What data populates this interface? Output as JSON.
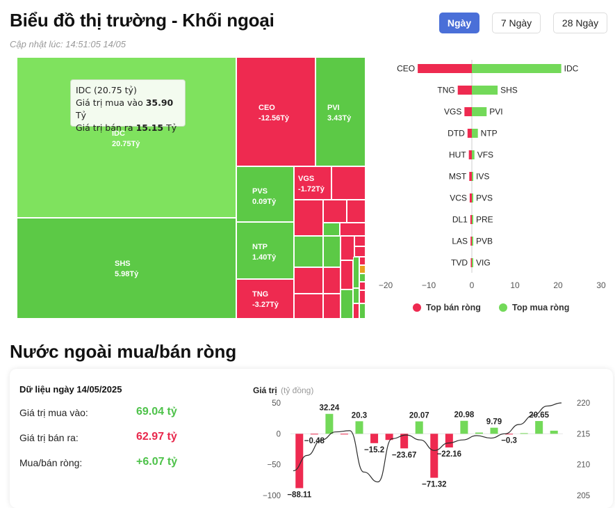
{
  "header": {
    "title": "Biểu đồ thị trường - Khối ngoại",
    "updated": "Cập nhật lúc: 14:51:05 14/05",
    "tabs": [
      {
        "label": "Ngày",
        "active": true
      },
      {
        "label": "7 Ngày",
        "active": false
      },
      {
        "label": "28 Ngày",
        "active": false
      }
    ]
  },
  "colors": {
    "buy": "#73d959",
    "buy_dark": "#5cc946",
    "sell": "#ee2a50",
    "accent": "#4a6fd8"
  },
  "treemap": {
    "tiles": [
      {
        "code": "IDC",
        "value": "20.75Tỷ",
        "side": "buy"
      },
      {
        "code": "SHS",
        "value": "5.98Tỷ",
        "side": "buy"
      },
      {
        "code": "CEO",
        "value": "-12.56Tỷ",
        "side": "sell"
      },
      {
        "code": "PVI",
        "value": "3.43Tỷ",
        "side": "buy"
      },
      {
        "code": "PVS",
        "value": "0.09Tỷ",
        "side": "buy"
      },
      {
        "code": "VGS",
        "value": "-1.72Tỷ",
        "side": "sell"
      },
      {
        "code": "NTP",
        "value": "1.40Tỷ",
        "side": "buy"
      },
      {
        "code": "TNG",
        "value": "-3.27Tỷ",
        "side": "sell"
      }
    ],
    "tooltip": {
      "title": "IDC (20.75 tỷ)",
      "buy_label": "Giá trị mua vào",
      "buy_value": "35.90",
      "sell_label": "Giá trị bán ra",
      "sell_value": "15.15",
      "unit": "Tỷ"
    }
  },
  "chart_data": [
    {
      "type": "bar",
      "orientation": "horizontal",
      "sell_codes": [
        "CEO",
        "TNG",
        "VGS",
        "DTD",
        "HUT",
        "MST",
        "VCS",
        "DL1",
        "LAS",
        "TVD"
      ],
      "sell_values": [
        -12.56,
        -3.27,
        -1.72,
        -1.0,
        -0.7,
        -0.6,
        -0.5,
        -0.35,
        -0.3,
        -0.25
      ],
      "buy_codes": [
        "IDC",
        "SHS",
        "PVI",
        "NTP",
        "VFS",
        "IVS",
        "PVS",
        "PRE",
        "PVB",
        "VIG"
      ],
      "buy_values": [
        20.75,
        5.98,
        3.43,
        1.4,
        0.6,
        0.3,
        0.09,
        0.08,
        0.06,
        0.05
      ],
      "xticks": [
        "−20",
        "−10",
        "0",
        "10",
        "20",
        "30"
      ],
      "xlim": [
        -20,
        30
      ],
      "legend": [
        {
          "name": "Top bán ròng",
          "color": "#ee2a50"
        },
        {
          "name": "Top mua ròng",
          "color": "#73d959"
        }
      ],
      "legend_position": "bottom"
    },
    {
      "type": "bar",
      "ylabel": "Giá trị",
      "ylabel_unit": "(tỷ đồng)",
      "values": [
        -88.11,
        -0.48,
        32.24,
        -1,
        20.3,
        -15.2,
        -10,
        -23.67,
        20.07,
        -71.32,
        -22.16,
        20.98,
        2,
        9.79,
        -0.3,
        1,
        20.65,
        5
      ],
      "data_labels": [
        {
          "i": 0,
          "text": "−88.11"
        },
        {
          "i": 1,
          "text": "−0.48"
        },
        {
          "i": 2,
          "text": "32.24"
        },
        {
          "i": 4,
          "text": "20.3"
        },
        {
          "i": 5,
          "text": "−15.2"
        },
        {
          "i": 7,
          "text": "−23.67"
        },
        {
          "i": 8,
          "text": "20.07"
        },
        {
          "i": 9,
          "text": "−71.32"
        },
        {
          "i": 10,
          "text": "−22.16"
        },
        {
          "i": 11,
          "text": "20.98"
        },
        {
          "i": 13,
          "text": "9.79"
        },
        {
          "i": 14,
          "text": "−0.3"
        },
        {
          "i": 16,
          "text": "20.65"
        }
      ],
      "line_values": [
        209.0,
        211.5,
        214.0,
        215.3,
        215.5,
        208.8,
        207.2,
        214.2,
        214.8,
        214.0,
        212.3,
        213.5,
        214.0,
        214.7,
        214.3,
        215.0,
        216.5,
        218.0,
        219.5,
        220.0
      ],
      "yticks_left": [
        "50",
        "0",
        "−50",
        "−100"
      ],
      "yticks_right": [
        "220",
        "215",
        "210",
        "205"
      ],
      "ylim_left": [
        -100,
        50
      ],
      "ylim_right": [
        205,
        220
      ]
    }
  ],
  "summary": {
    "heading": "Dữ liệu ngày 14/05/2025",
    "buy_label": "Giá trị mua vào:",
    "buy_value": "69.04 tỷ",
    "sell_label": "Giá trị bán ra:",
    "sell_value": "62.97 tỷ",
    "net_label": "Mua/bán ròng:",
    "net_value": "+6.07 tỷ"
  },
  "section2_title": "Nước ngoài mua/bán ròng"
}
